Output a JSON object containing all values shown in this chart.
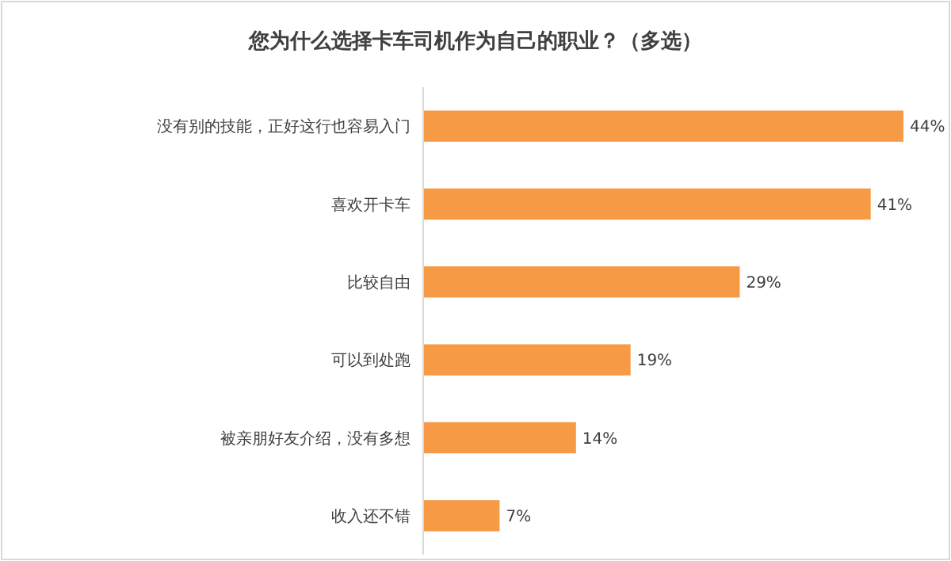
{
  "chart_data": {
    "type": "bar",
    "orientation": "horizontal",
    "title": "您为什么选择卡车司机作为自己的职业？（多选）",
    "categories": [
      "没有别的技能，正好这行也容易入门",
      "喜欢开卡车",
      "比较自由",
      "可以到处跑",
      "被亲朋好友介绍，没有多想",
      "收入还不错"
    ],
    "values": [
      44,
      41,
      29,
      19,
      14,
      7
    ],
    "value_labels": [
      "44%",
      "41%",
      "29%",
      "19%",
      "14%",
      "7%"
    ],
    "color": "#f79a46"
  }
}
